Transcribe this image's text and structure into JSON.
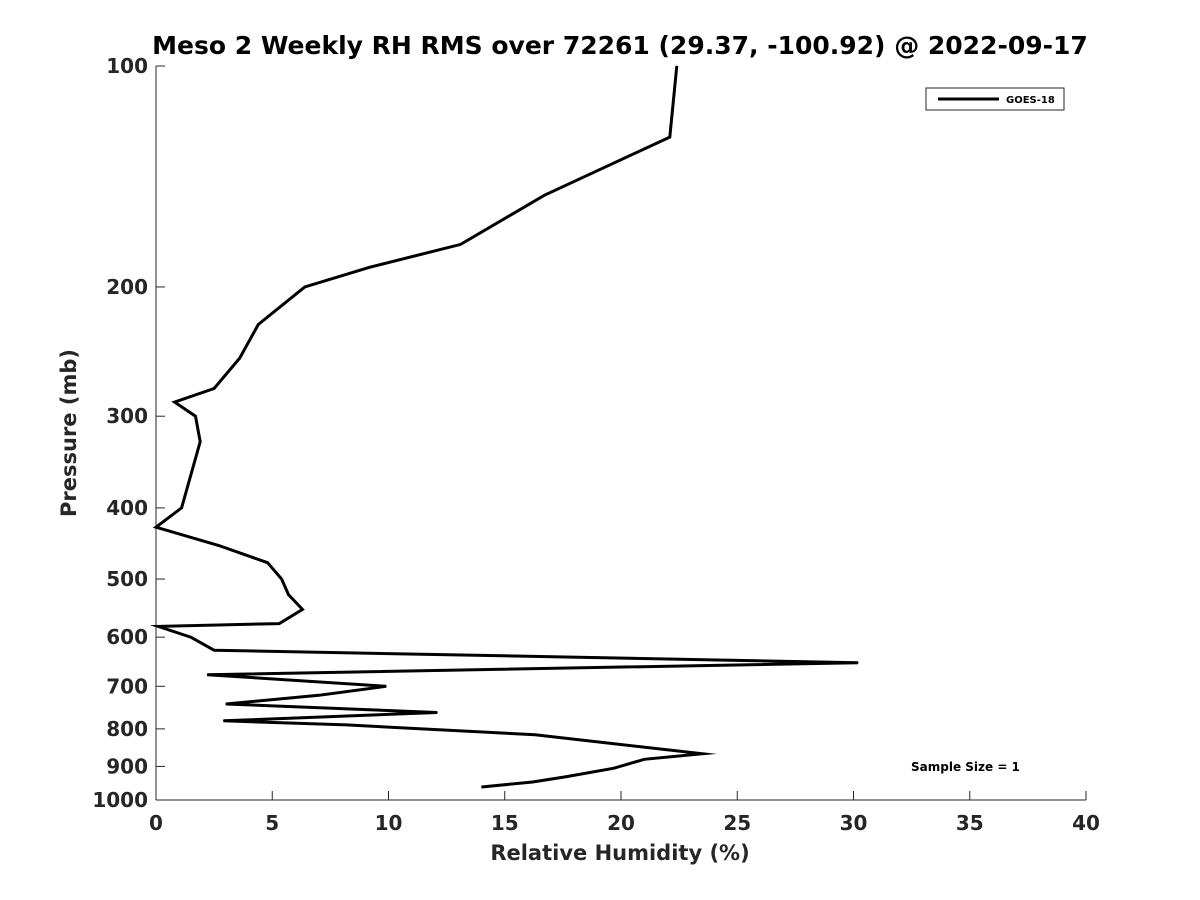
{
  "chart_data": {
    "type": "line",
    "title": "Meso 2 Weekly RH RMS over 72261 (29.37, -100.92) @ 2022-09-17",
    "xlabel": "Relative Humidity (%)",
    "ylabel": "Pressure (mb)",
    "xlim": [
      0,
      40
    ],
    "ylim": [
      1000,
      100
    ],
    "yscale": "log",
    "grid": false,
    "legend_position": "top-right",
    "xticks": [
      0,
      5,
      10,
      15,
      20,
      25,
      30,
      35,
      40
    ],
    "xtick_labels": [
      "0",
      "5",
      "10",
      "15",
      "20",
      "25",
      "30",
      "35",
      "40"
    ],
    "yticks": [
      100,
      200,
      300,
      400,
      500,
      600,
      700,
      800,
      900,
      1000
    ],
    "ytick_labels": [
      "100",
      "200",
      "300",
      "400",
      "500",
      "600",
      "700",
      "800",
      "900",
      "1000"
    ],
    "series": [
      {
        "name": "GOES-18",
        "color": "#000000",
        "x": [
          22.4,
          22.1,
          16.7,
          13.1,
          9.2,
          6.4,
          4.4,
          3.6,
          2.5,
          0.8,
          1.7,
          1.9,
          1.1,
          0.0,
          2.7,
          4.8,
          5.4,
          5.7,
          6.3,
          5.3,
          0.1,
          1.5,
          2.5,
          30.2,
          2.2,
          9.9,
          7.0,
          3.0,
          12.1,
          2.9,
          8.2,
          16.3,
          23.5,
          21.0,
          19.7,
          17.6,
          16.2,
          14.0
        ],
        "y": [
          100,
          125,
          150,
          175,
          188,
          200,
          225,
          250,
          275,
          287,
          300,
          325,
          400,
          425,
          450,
          475,
          500,
          525,
          550,
          575,
          580,
          600,
          625,
          650,
          675,
          700,
          720,
          740,
          760,
          780,
          790,
          815,
          865,
          880,
          905,
          930,
          945,
          960
        ]
      }
    ],
    "annotations": [
      "Sample Size = 1"
    ]
  }
}
